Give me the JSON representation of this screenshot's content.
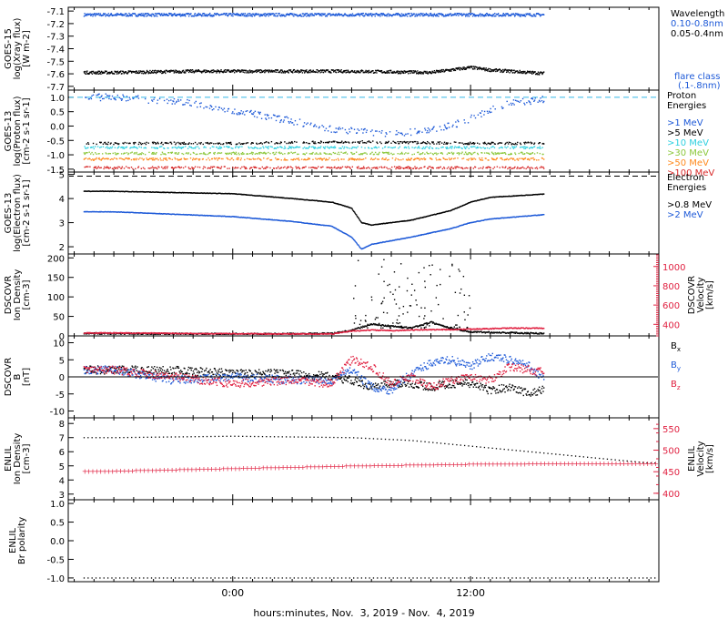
{
  "x_label": "hours:minutes, Nov.  3, 2019 - Nov.  4, 2019",
  "x_ticks": [
    "0:00",
    "12:00"
  ],
  "chart_data": [
    {
      "type": "scatter",
      "name": "goes_xray",
      "ylabel_lines": [
        "GOES-15",
        "log(Xray flux)",
        "[W m-2]"
      ],
      "ylim": [
        -7.73,
        -7.07
      ],
      "yticks": [
        -7.1,
        -7.2,
        -7.3,
        -7.4,
        -7.5,
        -7.6,
        -7.7
      ],
      "legend_title": "Wavelength",
      "legend_note": [
        "flare class",
        "(.1-.8nm)"
      ],
      "series": [
        {
          "name": "0.10-0.8nm",
          "color": "#1e5ad8",
          "x": [
            -6,
            -2,
            2,
            6,
            10,
            13.5,
            16
          ],
          "y": [
            -7.13,
            -7.13,
            -7.13,
            -7.13,
            -7.13,
            -7.13,
            -7.13
          ]
        },
        {
          "name": "0.05-0.4nm",
          "color": "#000000",
          "x": [
            -6,
            -2,
            2,
            6,
            10,
            12,
            13,
            16
          ],
          "y": [
            -7.59,
            -7.58,
            -7.58,
            -7.58,
            -7.59,
            -7.55,
            -7.57,
            -7.6
          ]
        }
      ]
    },
    {
      "type": "scatter",
      "name": "goes_protons",
      "ylabel_lines": [
        "GOES-13",
        "log(Proton flux)",
        "[cm-2 s-1 sr-1]"
      ],
      "ylim": [
        -1.6,
        1.25
      ],
      "yticks": [
        1.0,
        0.5,
        0.0,
        -0.5,
        -1.0,
        -1.5
      ],
      "legend_title": "Proton Energies",
      "series": [
        {
          "name": ">1 MeV",
          "color": "#1e5ad8",
          "x": [
            -6,
            -2,
            2,
            5,
            8,
            11,
            14,
            16
          ],
          "y": [
            1.0,
            0.8,
            0.3,
            -0.1,
            -0.3,
            0.0,
            0.8,
            0.95
          ]
        },
        {
          "name": ">5 MeV",
          "color": "#000000",
          "x": [
            -6,
            0,
            6,
            12,
            16
          ],
          "y": [
            -0.6,
            -0.6,
            -0.55,
            -0.6,
            -0.6
          ]
        },
        {
          "name": ">10 MeV",
          "color": "#2fd0e0",
          "x": [
            -6,
            0,
            6,
            12,
            16
          ],
          "y": [
            -0.75,
            -0.75,
            -0.75,
            -0.75,
            -0.75
          ]
        },
        {
          "name": ">30 MeV",
          "color": "#8cc83c",
          "x": [
            -6,
            0,
            6,
            12,
            16
          ],
          "y": [
            -0.95,
            -0.95,
            -0.95,
            -0.95,
            -0.95
          ]
        },
        {
          "name": ">50 MeV",
          "color": "#ff8a1e",
          "x": [
            -6,
            0,
            6,
            12,
            16
          ],
          "y": [
            -1.15,
            -1.15,
            -1.15,
            -1.15,
            -1.15
          ]
        },
        {
          "name": ">100 MeV",
          "color": "#d82828",
          "x": [
            -6,
            0,
            6,
            12,
            16
          ],
          "y": [
            -1.45,
            -1.45,
            -1.45,
            -1.45,
            -1.45
          ]
        }
      ]
    },
    {
      "type": "line",
      "name": "goes_electrons",
      "ylabel_lines": [
        "GOES-13",
        "log(Electron flux)",
        "[cm-2 s-1 sr-1]"
      ],
      "ylim": [
        1.7,
        5.1
      ],
      "yticks": [
        5,
        4,
        3,
        2
      ],
      "legend_title": "Electron Energies",
      "series": [
        {
          "name": ">0.8 MeV",
          "color": "#000000",
          "x": [
            -6,
            -3,
            0,
            3,
            5,
            6,
            6.5,
            7,
            9,
            11,
            12,
            13,
            16
          ],
          "y": [
            4.3,
            4.25,
            4.2,
            4.0,
            3.85,
            3.6,
            3.0,
            2.9,
            3.1,
            3.5,
            3.85,
            4.05,
            4.2
          ]
        },
        {
          "name": ">2 MeV",
          "color": "#1e5ad8",
          "x": [
            -6,
            -3,
            0,
            3,
            5,
            6,
            6.5,
            7,
            9,
            11,
            12,
            13,
            16
          ],
          "y": [
            3.45,
            3.35,
            3.25,
            3.05,
            2.85,
            2.4,
            1.9,
            2.1,
            2.4,
            2.75,
            3.0,
            3.15,
            3.35
          ]
        }
      ]
    },
    {
      "type": "line",
      "name": "dscovr_plasma",
      "ylabel_lines": [
        "DSCOVR",
        "Ion Density",
        "[cm-3]"
      ],
      "ylim": [
        0,
        210
      ],
      "yticks": [
        200,
        150,
        100,
        50,
        0
      ],
      "ylabel2_lines": [
        "DSCOVR",
        "Velocity",
        "[km/s]"
      ],
      "ylim2": [
        280,
        1130
      ],
      "yticks2": [
        1000,
        800,
        600,
        400
      ],
      "series": [
        {
          "name": "Ion Density",
          "color": "#000000",
          "x": [
            -6,
            -2,
            2,
            5,
            6,
            7,
            8,
            9,
            10,
            11,
            12,
            14,
            16
          ],
          "y": [
            6,
            5,
            5,
            6,
            14,
            30,
            25,
            20,
            35,
            20,
            10,
            8,
            6
          ]
        },
        {
          "name": "Velocity",
          "color": "#e02040",
          "x": [
            -6,
            -2,
            2,
            5,
            6,
            7,
            8,
            9,
            10,
            11,
            12,
            14,
            16
          ],
          "y": [
            310,
            305,
            300,
            300,
            330,
            340,
            335,
            340,
            345,
            345,
            350,
            360,
            360
          ]
        }
      ]
    },
    {
      "type": "scatter",
      "name": "dscovr_field",
      "ylabel_lines": [
        "DSCOVR",
        "B",
        "[nT]"
      ],
      "ylim": [
        -12,
        12
      ],
      "yticks": [
        10,
        5,
        0,
        -5,
        -10
      ],
      "series": [
        {
          "name": "Bx",
          "color": "#000000",
          "x": [
            -6,
            -3,
            0,
            3,
            5,
            6,
            7,
            8,
            9,
            10,
            11,
            12,
            13,
            14,
            15,
            16
          ],
          "y": [
            2,
            2,
            1,
            1,
            0,
            -1,
            -3,
            -2,
            -2,
            -3,
            -2,
            -2,
            -4,
            -3,
            -5,
            -3
          ]
        },
        {
          "name": "By",
          "color": "#1e5ad8",
          "x": [
            -6,
            -3,
            0,
            3,
            5,
            6,
            7,
            8,
            9,
            10,
            11,
            12,
            13,
            14,
            15,
            16
          ],
          "y": [
            2,
            -1,
            0,
            -1,
            -1,
            2,
            -3,
            -4,
            1,
            4,
            5,
            3,
            6,
            5,
            3,
            -2
          ]
        },
        {
          "name": "Bz",
          "color": "#e02040",
          "x": [
            -6,
            -3,
            0,
            3,
            5,
            6,
            7,
            8,
            9,
            10,
            11,
            12,
            13,
            14,
            15,
            16
          ],
          "y": [
            2,
            0,
            -2,
            -1,
            -2,
            5,
            3,
            -2,
            0,
            -3,
            -1,
            0,
            -1,
            3,
            2,
            1
          ]
        }
      ]
    },
    {
      "type": "line",
      "name": "enlil_plasma",
      "ylabel_lines": [
        "ENLIL",
        "Ion Density",
        "[cm-3]"
      ],
      "ylim": [
        2.6,
        8.4
      ],
      "yticks": [
        8,
        7,
        6,
        5,
        4,
        3
      ],
      "ylabel2_lines": [
        "ENLIL",
        "Velocity",
        "[km/s]"
      ],
      "ylim2": [
        385,
        575
      ],
      "yticks2": [
        550,
        500,
        450,
        400
      ],
      "series": [
        {
          "name": "Ion Density",
          "color": "#000000",
          "x": [
            -6,
            -3,
            0,
            3,
            6,
            9,
            12,
            15,
            18,
            21
          ],
          "y": [
            7.0,
            7.05,
            7.1,
            7.05,
            7.0,
            6.8,
            6.4,
            6.0,
            5.6,
            5.2
          ]
        },
        {
          "name": "Velocity",
          "color": "#e02040",
          "x": [
            -6,
            -3,
            0,
            3,
            6,
            9,
            12,
            15,
            18,
            21
          ],
          "y": [
            452,
            455,
            458,
            461,
            464,
            466,
            468,
            469,
            469,
            469
          ]
        }
      ]
    },
    {
      "type": "line",
      "name": "enlil_polarity",
      "ylabel_lines": [
        "ENLIL",
        "Br polarity"
      ],
      "ylim": [
        -1.1,
        1.1
      ],
      "yticks": [
        1.0,
        0.5,
        0.0,
        -0.5,
        -1.0
      ],
      "series": [
        {
          "name": "Br polarity",
          "color": "#000000",
          "x": [
            -6,
            21
          ],
          "y": [
            -1.0,
            -1.0
          ]
        }
      ]
    }
  ],
  "colors": {
    "axis": "#000000",
    "blue": "#1e5ad8",
    "red": "#e02040",
    "grid_dash": "#35b8e8"
  }
}
